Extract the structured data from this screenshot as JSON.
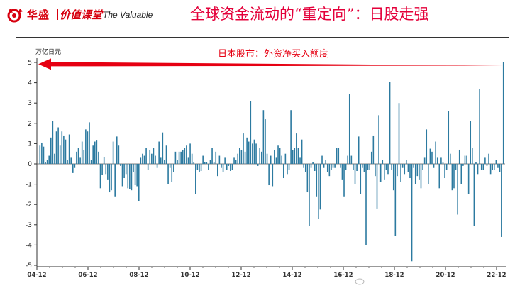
{
  "header": {
    "brand_cn": "华盛",
    "course_cn": "价值课堂",
    "brand_en": "The Valuable",
    "title": "全球资金流动的“重定向”：日股走强"
  },
  "colors": {
    "bar": "#2c7aa0",
    "arrow": "#e60012",
    "title": "#e4003a",
    "brand": "#d7000f"
  },
  "chart_data": {
    "type": "bar",
    "title": "",
    "annotation": "日本股市：外资净买入额度",
    "ylabel": "万亿日元",
    "xlabel": "",
    "ylim": [
      -5,
      5
    ],
    "yticks": [
      5,
      4,
      3,
      2,
      1,
      0,
      -1,
      -2,
      -3,
      -4,
      -5
    ],
    "xticks": [
      "04-12",
      "06-12",
      "08-12",
      "10-12",
      "12-12",
      "14-12",
      "16-12",
      "18-12",
      "20-12",
      "22-12"
    ],
    "period_start": "2004-12",
    "period_end": "2023-04",
    "grid": false,
    "legend": "none",
    "values": [
      0.9,
      1.05,
      0.85,
      0.1,
      0.2,
      0.4,
      1.3,
      2.1,
      0.5,
      1.6,
      1.8,
      0.9,
      1.6,
      1.4,
      1.2,
      0.2,
      1.45,
      0.3,
      -0.45,
      -0.2,
      0.6,
      0.8,
      0.3,
      1.1,
      0.7,
      1.7,
      1.6,
      2.05,
      0.2,
      0.9,
      1.1,
      1.15,
      0.6,
      -1.2,
      -0.55,
      0.35,
      -0.5,
      -0.8,
      -1.4,
      -1.3,
      1.1,
      -1.6,
      1.35,
      0.9,
      -0.1,
      -1.1,
      -0.7,
      -0.5,
      -1.2,
      -1.25,
      -1.3,
      -0.4,
      -1.05,
      -1.1,
      -1.85,
      0.3,
      0.5,
      0.4,
      0.8,
      -0.3,
      0.7,
      0.5,
      0.8,
      0.4,
      -0.2,
      1.1,
      0.3,
      1.55,
      0.2,
      0.9,
      -1.0,
      -0.2,
      -0.9,
      -0.4,
      0.6,
      0.2,
      0.6,
      0.6,
      0.7,
      0.8,
      0.9,
      0.3,
      1.0,
      0.5,
      0.1,
      -1.5,
      -0.3,
      -0.4,
      -0.35,
      0.4,
      0.1,
      0.1,
      -0.3,
      0.2,
      0.8,
      0.1,
      0.6,
      -0.6,
      0.4,
      -0.2,
      -0.4,
      0.3,
      -0.3,
      -0.1,
      -0.35,
      -0.3,
      0.3,
      0.2,
      0.5,
      0.8,
      0.7,
      1.5,
      0.6,
      1.3,
      1.1,
      3.1,
      1.0,
      1.2,
      1.0,
      -0.1,
      0.8,
      0.6,
      2.65,
      2.2,
      0.5,
      -1.05,
      0.4,
      -1.1,
      0.7,
      0.3,
      0.9,
      0.8,
      0.4,
      -0.7,
      0.5,
      -0.5,
      -0.3,
      2.65,
      0.7,
      0.8,
      1.5,
      0.8,
      0.3,
      1.2,
      -0.2,
      -0.4,
      -1.4,
      -3.05,
      -0.2,
      0.1,
      -0.35,
      -1.6,
      -2.7,
      -2.25,
      0.4,
      -0.2,
      0.2,
      -0.4,
      -0.6,
      -0.3,
      -0.2,
      -0.2,
      0.8,
      0.8,
      -0.2,
      -0.8,
      -1.6,
      -0.3,
      0.4,
      3.45,
      0.4,
      -0.3,
      -1.0,
      -0.35,
      1.35,
      -1.5,
      -0.2,
      -0.4,
      -4.0,
      -0.3,
      -0.3,
      0.6,
      1.4,
      -0.6,
      -2.2,
      2.4,
      -0.9,
      0.2,
      -0.8,
      -0.3,
      -0.5,
      4.05,
      -0.3,
      -1.3,
      -3.55,
      -0.6,
      3.0,
      -0.9,
      -0.2,
      -0.5,
      0.2,
      -0.4,
      -0.7,
      -4.8,
      -0.2,
      -1.0,
      -0.6,
      -0.8,
      -1.2,
      -0.3,
      0.3,
      1.7,
      -1.0,
      0.75,
      0.6,
      -0.2,
      1.1,
      0.3,
      -1.2,
      0.3,
      0.1,
      -0.7,
      -0.3,
      2.6,
      0.5,
      -1.3,
      -1.2,
      -0.3,
      -2.5,
      0.7,
      -1.0,
      -0.1,
      0.4,
      0.4,
      -1.5,
      2.1,
      0.8,
      -3.05,
      0.1,
      -0.5,
      3.7,
      -0.3,
      -0.3,
      0.3,
      -0.1,
      0.5,
      -0.5,
      -0.3,
      -0.3,
      0.2,
      -0.2,
      -0.4,
      -3.6,
      5.0
    ]
  }
}
